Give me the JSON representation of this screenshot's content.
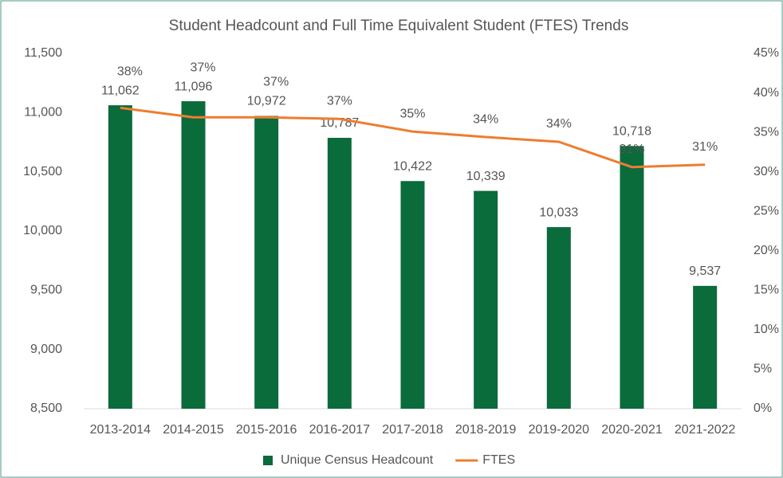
{
  "chart_data": {
    "type": "bar",
    "title": "Student Headcount and Full Time Equivalent Student (FTES) Trends",
    "categories": [
      "2013-2014",
      "2014-2015",
      "2015-2016",
      "2016-2017",
      "2017-2018",
      "2018-2019",
      "2019-2020",
      "2020-2021",
      "2021-2022"
    ],
    "series": [
      {
        "name": "Unique Census Headcount",
        "type": "bar",
        "color": "#0a6b3b",
        "values": [
          11062,
          11096,
          10972,
          10787,
          10422,
          10339,
          10033,
          10718,
          9537
        ],
        "value_labels": [
          "11,062",
          "11,096",
          "10,972",
          "10,787",
          "10,422",
          "10,339",
          "10,033",
          "10,718",
          "9,537"
        ]
      },
      {
        "name": "FTES",
        "type": "line",
        "axis": "y2",
        "color": "#ed7d31",
        "values": [
          38.1,
          36.9,
          36.9,
          36.7,
          35.1,
          34.4,
          33.8,
          30.6,
          30.9
        ],
        "value_labels": [
          "38%",
          "37%",
          "37%",
          "37%",
          "35%",
          "34%",
          "34%",
          "31%",
          "31%"
        ]
      }
    ],
    "ylim": [
      8500,
      11500
    ],
    "yticks": [
      {
        "value": 8500,
        "label": "8,500"
      },
      {
        "value": 9000,
        "label": "9,000"
      },
      {
        "value": 9500,
        "label": "9,500"
      },
      {
        "value": 10000,
        "label": "10,000"
      },
      {
        "value": 10500,
        "label": "10,500"
      },
      {
        "value": 11000,
        "label": "11,000"
      },
      {
        "value": 11500,
        "label": "11,500"
      }
    ],
    "y2lim": [
      0,
      45
    ],
    "y2ticks": [
      {
        "value": 0,
        "label": "0%"
      },
      {
        "value": 5,
        "label": "5%"
      },
      {
        "value": 10,
        "label": "10%"
      },
      {
        "value": 15,
        "label": "15%"
      },
      {
        "value": 20,
        "label": "20%"
      },
      {
        "value": 25,
        "label": "25%"
      },
      {
        "value": 30,
        "label": "30%"
      },
      {
        "value": 35,
        "label": "35%"
      },
      {
        "value": 40,
        "label": "40%"
      },
      {
        "value": 45,
        "label": "45%"
      }
    ],
    "legend": "bottom"
  }
}
